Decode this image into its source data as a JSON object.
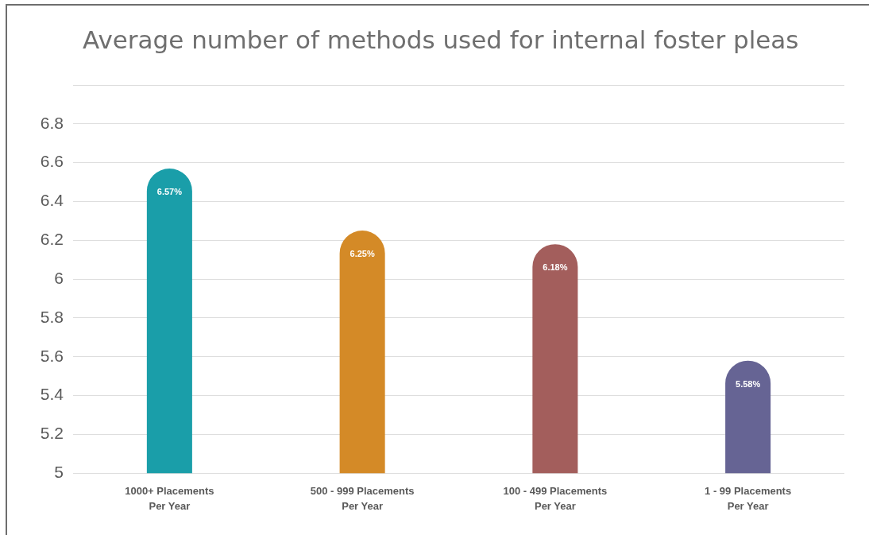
{
  "chart_data": {
    "type": "bar",
    "title": "Average number of methods used for internal foster pleas",
    "categories": [
      "1000+ Placements Per Year",
      "500 - 999 Placements Per Year",
      "100 - 499 Placements Per Year",
      "1 - 99 Placements Per Year"
    ],
    "values": [
      6.57,
      6.25,
      6.18,
      5.58
    ],
    "value_labels": [
      "6.57%",
      "6.25%",
      "6.18%",
      "5.58%"
    ],
    "colors": [
      "#1a9ea9",
      "#d48a27",
      "#a35e5c",
      "#666494"
    ],
    "ylim": [
      5,
      7
    ],
    "yticks": [
      5,
      5.2,
      5.4,
      5.6,
      5.8,
      6,
      6.2,
      6.4,
      6.6,
      6.8,
      {
        "value": 7,
        "label": null
      }
    ],
    "grid": "y"
  }
}
